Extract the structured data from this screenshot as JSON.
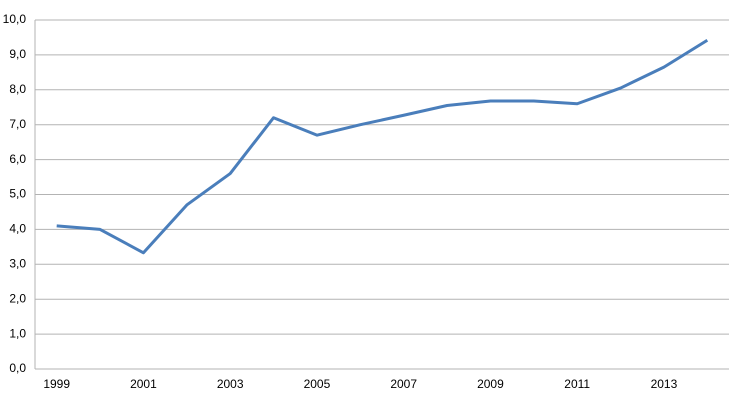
{
  "chart_data": {
    "type": "line",
    "categories": [
      "1999",
      null,
      "2001",
      null,
      "2003",
      null,
      "2005",
      null,
      "2007",
      null,
      "2009",
      null,
      "2011",
      null,
      "2013",
      null
    ],
    "series": [
      {
        "color": "#4a7ebb",
        "values": [
          4.1,
          4.0,
          3.33,
          4.7,
          5.6,
          7.2,
          6.7,
          7.0,
          7.27,
          7.55,
          7.68,
          7.68,
          7.6,
          8.05,
          8.65,
          9.42
        ]
      }
    ],
    "ylim": [
      0,
      10
    ],
    "yticks": [
      {
        "value": 0,
        "label": "0,0"
      },
      {
        "value": 1,
        "label": "1,0"
      },
      {
        "value": 2,
        "label": "2,0"
      },
      {
        "value": 3,
        "label": "3,0"
      },
      {
        "value": 4,
        "label": "4,0"
      },
      {
        "value": 5,
        "label": "5,0"
      },
      {
        "value": 6,
        "label": "6,0"
      },
      {
        "value": 7,
        "label": "7,0"
      },
      {
        "value": 8,
        "label": "8,0"
      },
      {
        "value": 9,
        "label": "9,0"
      },
      {
        "value": 10,
        "label": "10,0"
      }
    ],
    "grid": true
  }
}
